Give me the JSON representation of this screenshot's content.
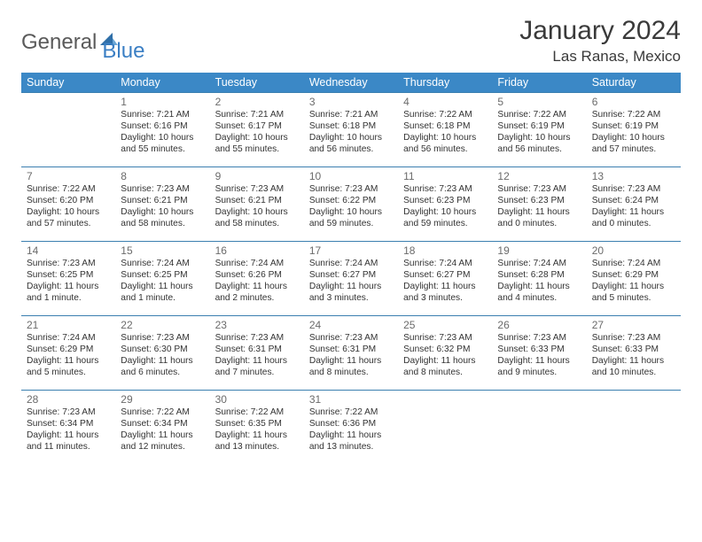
{
  "brand": {
    "part1": "General",
    "part2": "Blue"
  },
  "title": "January 2024",
  "location": "Las Ranas, Mexico",
  "days_of_week": [
    "Sunday",
    "Monday",
    "Tuesday",
    "Wednesday",
    "Thursday",
    "Friday",
    "Saturday"
  ],
  "colors": {
    "header_bg": "#3b88c6",
    "header_text": "#ffffff",
    "cell_border": "#3b7fb0",
    "daynum": "#6b6b6b",
    "body_text": "#333333",
    "title_text": "#3a3a3a",
    "logo_gray": "#5a5a5a",
    "logo_blue": "#3b7fc4"
  },
  "weeks": [
    [
      {
        "n": "",
        "sr": "",
        "ss": "",
        "dl": ""
      },
      {
        "n": "1",
        "sr": "7:21 AM",
        "ss": "6:16 PM",
        "dl": "10 hours and 55 minutes."
      },
      {
        "n": "2",
        "sr": "7:21 AM",
        "ss": "6:17 PM",
        "dl": "10 hours and 55 minutes."
      },
      {
        "n": "3",
        "sr": "7:21 AM",
        "ss": "6:18 PM",
        "dl": "10 hours and 56 minutes."
      },
      {
        "n": "4",
        "sr": "7:22 AM",
        "ss": "6:18 PM",
        "dl": "10 hours and 56 minutes."
      },
      {
        "n": "5",
        "sr": "7:22 AM",
        "ss": "6:19 PM",
        "dl": "10 hours and 56 minutes."
      },
      {
        "n": "6",
        "sr": "7:22 AM",
        "ss": "6:19 PM",
        "dl": "10 hours and 57 minutes."
      }
    ],
    [
      {
        "n": "7",
        "sr": "7:22 AM",
        "ss": "6:20 PM",
        "dl": "10 hours and 57 minutes."
      },
      {
        "n": "8",
        "sr": "7:23 AM",
        "ss": "6:21 PM",
        "dl": "10 hours and 58 minutes."
      },
      {
        "n": "9",
        "sr": "7:23 AM",
        "ss": "6:21 PM",
        "dl": "10 hours and 58 minutes."
      },
      {
        "n": "10",
        "sr": "7:23 AM",
        "ss": "6:22 PM",
        "dl": "10 hours and 59 minutes."
      },
      {
        "n": "11",
        "sr": "7:23 AM",
        "ss": "6:23 PM",
        "dl": "10 hours and 59 minutes."
      },
      {
        "n": "12",
        "sr": "7:23 AM",
        "ss": "6:23 PM",
        "dl": "11 hours and 0 minutes."
      },
      {
        "n": "13",
        "sr": "7:23 AM",
        "ss": "6:24 PM",
        "dl": "11 hours and 0 minutes."
      }
    ],
    [
      {
        "n": "14",
        "sr": "7:23 AM",
        "ss": "6:25 PM",
        "dl": "11 hours and 1 minute."
      },
      {
        "n": "15",
        "sr": "7:24 AM",
        "ss": "6:25 PM",
        "dl": "11 hours and 1 minute."
      },
      {
        "n": "16",
        "sr": "7:24 AM",
        "ss": "6:26 PM",
        "dl": "11 hours and 2 minutes."
      },
      {
        "n": "17",
        "sr": "7:24 AM",
        "ss": "6:27 PM",
        "dl": "11 hours and 3 minutes."
      },
      {
        "n": "18",
        "sr": "7:24 AM",
        "ss": "6:27 PM",
        "dl": "11 hours and 3 minutes."
      },
      {
        "n": "19",
        "sr": "7:24 AM",
        "ss": "6:28 PM",
        "dl": "11 hours and 4 minutes."
      },
      {
        "n": "20",
        "sr": "7:24 AM",
        "ss": "6:29 PM",
        "dl": "11 hours and 5 minutes."
      }
    ],
    [
      {
        "n": "21",
        "sr": "7:24 AM",
        "ss": "6:29 PM",
        "dl": "11 hours and 5 minutes."
      },
      {
        "n": "22",
        "sr": "7:23 AM",
        "ss": "6:30 PM",
        "dl": "11 hours and 6 minutes."
      },
      {
        "n": "23",
        "sr": "7:23 AM",
        "ss": "6:31 PM",
        "dl": "11 hours and 7 minutes."
      },
      {
        "n": "24",
        "sr": "7:23 AM",
        "ss": "6:31 PM",
        "dl": "11 hours and 8 minutes."
      },
      {
        "n": "25",
        "sr": "7:23 AM",
        "ss": "6:32 PM",
        "dl": "11 hours and 8 minutes."
      },
      {
        "n": "26",
        "sr": "7:23 AM",
        "ss": "6:33 PM",
        "dl": "11 hours and 9 minutes."
      },
      {
        "n": "27",
        "sr": "7:23 AM",
        "ss": "6:33 PM",
        "dl": "11 hours and 10 minutes."
      }
    ],
    [
      {
        "n": "28",
        "sr": "7:23 AM",
        "ss": "6:34 PM",
        "dl": "11 hours and 11 minutes."
      },
      {
        "n": "29",
        "sr": "7:22 AM",
        "ss": "6:34 PM",
        "dl": "11 hours and 12 minutes."
      },
      {
        "n": "30",
        "sr": "7:22 AM",
        "ss": "6:35 PM",
        "dl": "11 hours and 13 minutes."
      },
      {
        "n": "31",
        "sr": "7:22 AM",
        "ss": "6:36 PM",
        "dl": "11 hours and 13 minutes."
      },
      {
        "n": "",
        "sr": "",
        "ss": "",
        "dl": ""
      },
      {
        "n": "",
        "sr": "",
        "ss": "",
        "dl": ""
      },
      {
        "n": "",
        "sr": "",
        "ss": "",
        "dl": ""
      }
    ]
  ],
  "labels": {
    "sunrise": "Sunrise: ",
    "sunset": "Sunset: ",
    "daylight": "Daylight: "
  }
}
